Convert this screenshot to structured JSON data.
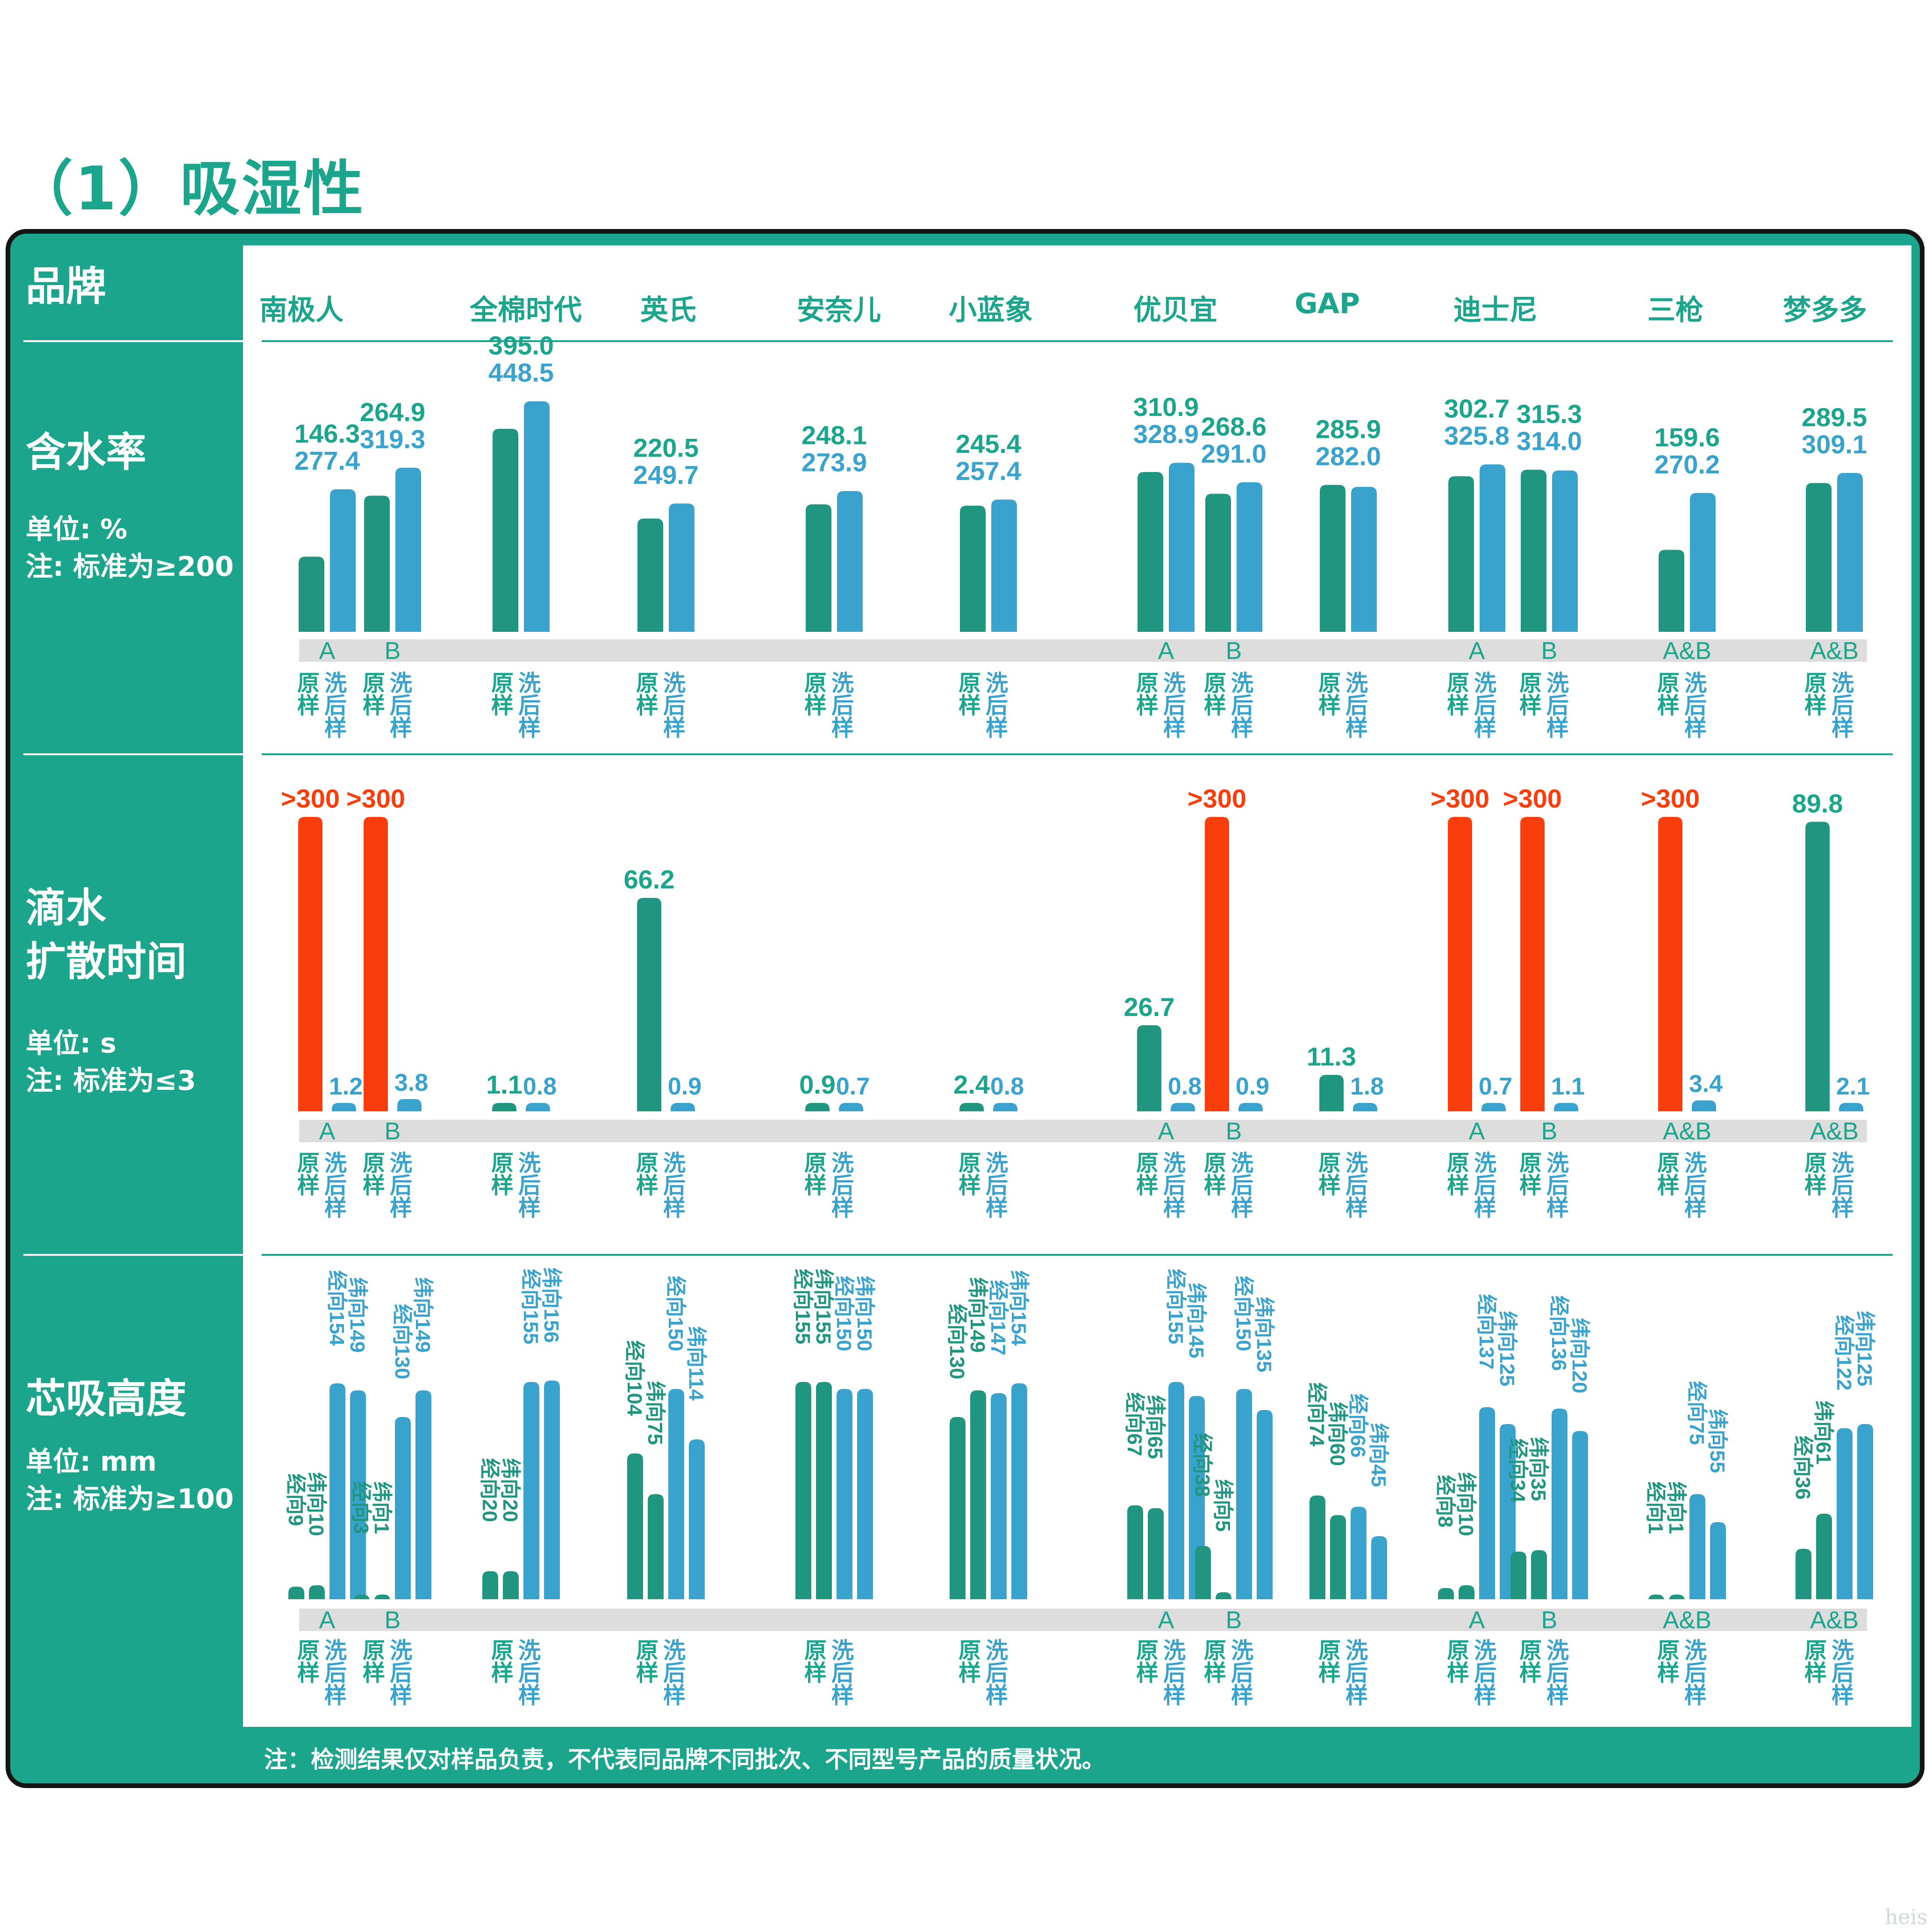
{
  "title": "（1）吸湿性",
  "brand_header": "品牌",
  "brands": [
    "南极人",
    "全棉时代",
    "英氏",
    "安奈儿",
    "小蓝象",
    "优贝宜",
    "GAP",
    "迪士尼",
    "三枪",
    "梦多多"
  ],
  "colors": {
    "teal": "#1aa58c",
    "dark_teal": "#20957f",
    "blue": "#3aa3cd",
    "red": "#fa3d0d",
    "gray_band": "#dddddd",
    "panel": "#1aa58c",
    "panel_border": "#141414"
  },
  "sample_labels": {
    "original": "原样",
    "washed": "洗后样"
  },
  "sections": {
    "moisture": {
      "title": "含水率",
      "unit": "单位: %",
      "note": "注: 标准为≥200"
    },
    "diffusion": {
      "title_line1": "滴水",
      "title_line2": "扩散时间",
      "unit": "单位: s",
      "note": "注: 标准为≤3"
    },
    "wicking": {
      "title": "芯吸高度",
      "unit": "单位: mm",
      "note": "注: 标准为≥100"
    }
  },
  "footnote": "注：检测结果仅对样品负责，不代表同品牌不同批次、不同型号产品的质量状况。",
  "watermark": "heis",
  "chart_data": [
    {
      "type": "bar",
      "title": "含水率",
      "ylabel": "单位: %",
      "series": [
        {
          "name": "原样"
        },
        {
          "name": "洗后样"
        }
      ],
      "groups": [
        {
          "brand": "南极人",
          "variant": "A",
          "original": 146.3,
          "washed": 277.4
        },
        {
          "brand": "南极人",
          "variant": "B",
          "original": 264.9,
          "washed": 319.3
        },
        {
          "brand": "全棉时代",
          "variant": "",
          "original": 395.0,
          "washed": 448.5
        },
        {
          "brand": "英氏",
          "variant": "",
          "original": 220.5,
          "washed": 249.7
        },
        {
          "brand": "安奈儿",
          "variant": "",
          "original": 248.1,
          "washed": 273.9
        },
        {
          "brand": "小蓝象",
          "variant": "",
          "original": 245.4,
          "washed": 257.4
        },
        {
          "brand": "优贝宜",
          "variant": "A",
          "original": 310.9,
          "washed": 328.9
        },
        {
          "brand": "优贝宜",
          "variant": "B",
          "original": 268.6,
          "washed": 291.0
        },
        {
          "brand": "GAP",
          "variant": "",
          "original": 285.9,
          "washed": 282.0
        },
        {
          "brand": "迪士尼",
          "variant": "A",
          "original": 302.7,
          "washed": 325.8
        },
        {
          "brand": "迪士尼",
          "variant": "B",
          "original": 315.3,
          "washed": 314.0
        },
        {
          "brand": "三枪",
          "variant": "A&B",
          "original": 159.6,
          "washed": 270.2
        },
        {
          "brand": "梦多多",
          "variant": "A&B",
          "original": 289.5,
          "washed": 309.1
        }
      ]
    },
    {
      "type": "bar",
      "title": "滴水扩散时间",
      "ylabel": "单位: s",
      "series": [
        {
          "name": "原样"
        },
        {
          "name": "洗后样"
        }
      ],
      "groups": [
        {
          "brand": "南极人",
          "variant": "A",
          "original": ">300",
          "washed": 1.2
        },
        {
          "brand": "南极人",
          "variant": "B",
          "original": ">300",
          "washed": 3.8
        },
        {
          "brand": "全棉时代",
          "variant": "",
          "original": 1.1,
          "washed": 0.8
        },
        {
          "brand": "英氏",
          "variant": "",
          "original": 66.2,
          "washed": 0.9
        },
        {
          "brand": "安奈儿",
          "variant": "",
          "original": 0.9,
          "washed": 0.7
        },
        {
          "brand": "小蓝象",
          "variant": "",
          "original": 2.4,
          "washed": 0.8
        },
        {
          "brand": "优贝宜",
          "variant": "A",
          "original": 26.7,
          "washed": 0.8
        },
        {
          "brand": "优贝宜",
          "variant": "B",
          "original": ">300",
          "washed": 0.9
        },
        {
          "brand": "GAP",
          "variant": "",
          "original": 11.3,
          "washed": 1.8
        },
        {
          "brand": "迪士尼",
          "variant": "A",
          "original": ">300",
          "washed": 0.7
        },
        {
          "brand": "迪士尼",
          "variant": "B",
          "original": ">300",
          "washed": 1.1
        },
        {
          "brand": "三枪",
          "variant": "A&B",
          "original": ">300",
          "washed": 3.4
        },
        {
          "brand": "梦多多",
          "variant": "A&B",
          "original": 89.8,
          "washed": 2.1
        }
      ]
    },
    {
      "type": "bar",
      "title": "芯吸高度",
      "ylabel": "单位: mm",
      "series": [
        {
          "name": "原样 经向"
        },
        {
          "name": "原样 纬向"
        },
        {
          "name": "洗后样 经向"
        },
        {
          "name": "洗后样 纬向"
        }
      ],
      "direction_labels": {
        "warp": "经向",
        "weft": "纬向"
      },
      "groups": [
        {
          "brand": "南极人",
          "variant": "A",
          "original": {
            "warp": 9,
            "weft": 10
          },
          "washed": {
            "warp": 154,
            "weft": 149
          }
        },
        {
          "brand": "南极人",
          "variant": "B",
          "original": {
            "warp": 3,
            "weft": 1
          },
          "washed": {
            "warp": 130,
            "weft": 149
          }
        },
        {
          "brand": "全棉时代",
          "variant": "",
          "original": {
            "warp": 20,
            "weft": 20
          },
          "washed": {
            "warp": 155,
            "weft": 156
          }
        },
        {
          "brand": "英氏",
          "variant": "",
          "original": {
            "warp": 104,
            "weft": 75
          },
          "washed": {
            "warp": 150,
            "weft": 114
          }
        },
        {
          "brand": "安奈儿",
          "variant": "",
          "original": {
            "warp": 155,
            "weft": 155
          },
          "washed": {
            "warp": 150,
            "weft": 150
          }
        },
        {
          "brand": "小蓝象",
          "variant": "",
          "original": {
            "warp": 130,
            "weft": 149
          },
          "washed": {
            "warp": 147,
            "weft": 154
          }
        },
        {
          "brand": "优贝宜",
          "variant": "A",
          "original": {
            "warp": 67,
            "weft": 65
          },
          "washed": {
            "warp": 155,
            "weft": 145
          }
        },
        {
          "brand": "优贝宜",
          "variant": "B",
          "original": {
            "warp": 38,
            "weft": 5
          },
          "washed": {
            "warp": 150,
            "weft": 135
          }
        },
        {
          "brand": "GAP",
          "variant": "",
          "original": {
            "warp": 74,
            "weft": 60
          },
          "washed": {
            "warp": 66,
            "weft": 45
          }
        },
        {
          "brand": "迪士尼",
          "variant": "A",
          "original": {
            "warp": 8,
            "weft": 10
          },
          "washed": {
            "warp": 137,
            "weft": 125
          }
        },
        {
          "brand": "迪士尼",
          "variant": "B",
          "original": {
            "warp": 34,
            "weft": 35
          },
          "washed": {
            "warp": 136,
            "weft": 120
          }
        },
        {
          "brand": "三枪",
          "variant": "A&B",
          "original": {
            "warp": 1,
            "weft": 1
          },
          "washed": {
            "warp": 75,
            "weft": 55
          }
        },
        {
          "brand": "梦多多",
          "variant": "A&B",
          "original": {
            "warp": 36,
            "weft": 61
          },
          "washed": {
            "warp": 122,
            "weft": 125
          }
        }
      ]
    }
  ]
}
